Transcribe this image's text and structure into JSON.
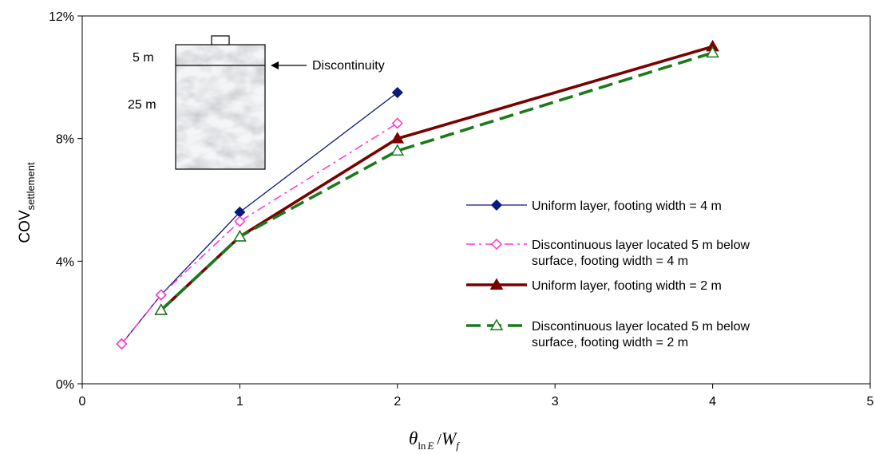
{
  "chart_data": {
    "type": "line",
    "x_label": {
      "main": "θ",
      "sub1": "ln",
      "sub1b": "E",
      "slash": "/",
      "main2": "W",
      "sub2": "f"
    },
    "y_label": {
      "main": "COV",
      "sub": "settlement"
    },
    "xlim": [
      0,
      5
    ],
    "ylim": [
      0,
      0.12
    ],
    "x_ticks": [
      "0",
      "1",
      "2",
      "3",
      "4",
      "5"
    ],
    "y_ticks": [
      "0%",
      "4%",
      "8%",
      "12%"
    ],
    "x_positions": [
      0,
      1,
      2,
      3,
      4,
      5
    ],
    "x_categories_note": "",
    "series": [
      {
        "legend_lines": [
          "Uniform layer, footing width = 4 m"
        ],
        "color": "#0a1a7a",
        "marker": "diamond-filled",
        "dash": "solid",
        "points": [
          [
            0.25,
            0.013
          ],
          [
            0.5,
            0.029
          ],
          [
            1,
            0.056
          ],
          [
            2,
            0.095
          ]
        ]
      },
      {
        "legend_lines": [
          "Discontinuous layer located 5 m  below",
          "surface, footing width = 4 m"
        ],
        "color": "#ff33cc",
        "marker": "diamond-open",
        "dash": "dashdot",
        "points": [
          [
            0.25,
            0.013
          ],
          [
            0.5,
            0.029
          ],
          [
            1,
            0.053
          ],
          [
            2,
            0.085
          ]
        ]
      },
      {
        "legend_lines": [
          "Uniform layer, footing width = 2 m"
        ],
        "color": "#7a0000",
        "marker": "triangle-filled",
        "dash": "solid",
        "points": [
          [
            0.5,
            0.024
          ],
          [
            1,
            0.048
          ],
          [
            2,
            0.08
          ],
          [
            4,
            0.11
          ]
        ]
      },
      {
        "legend_lines": [
          "Discontinuous layer located 5 m  below",
          "surface, footing width = 2 m"
        ],
        "color": "#1a7a1a",
        "marker": "triangle-open",
        "dash": "dashed",
        "points": [
          [
            0.5,
            0.024
          ],
          [
            1,
            0.048
          ],
          [
            2,
            0.076
          ],
          [
            4,
            0.108
          ]
        ]
      }
    ],
    "inset": {
      "top_label": "5 m",
      "bottom_label": "25 m",
      "annotation": "Discontinuity"
    }
  }
}
